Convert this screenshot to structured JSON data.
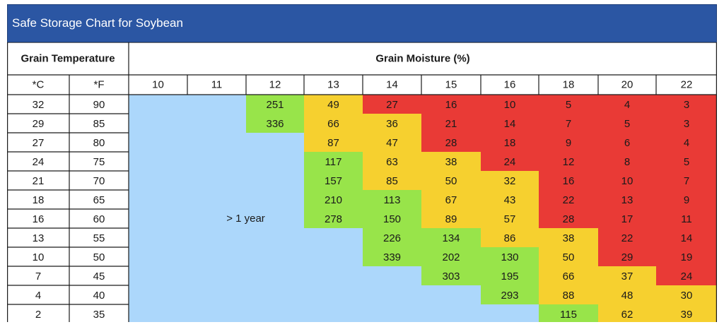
{
  "colors": {
    "title_bg": "#2b56a3",
    "over_year": "#acd7fb",
    "safe": "#98e44a",
    "caution": "#f6d02f",
    "danger": "#e93a36",
    "grid_line": "#1a1a1a"
  },
  "chart_data": {
    "type": "table",
    "title": "Safe Storage Chart for Soybean",
    "temperature_header": "Grain Temperature",
    "moisture_header": "Grain Moisture (%)",
    "celsius_label": "*C",
    "fahrenheit_label": "*F",
    "over_year_label": "> 1 year",
    "moisture_levels": [
      "10",
      "11",
      "12",
      "13",
      "14",
      "15",
      "16",
      "18",
      "20",
      "22"
    ],
    "temps_c": [
      "32",
      "29",
      "27",
      "24",
      "21",
      "18",
      "16",
      "13",
      "10",
      "7",
      "4",
      "2"
    ],
    "temps_f": [
      "90",
      "85",
      "80",
      "75",
      "70",
      "65",
      "60",
      "55",
      "50",
      "45",
      "40",
      "35"
    ],
    "rows": [
      [
        null,
        null,
        {
          "v": "251",
          "c": "safe"
        },
        {
          "v": "49",
          "c": "caution"
        },
        {
          "v": "27",
          "c": "danger"
        },
        {
          "v": "16",
          "c": "danger"
        },
        {
          "v": "10",
          "c": "danger"
        },
        {
          "v": "5",
          "c": "danger"
        },
        {
          "v": "4",
          "c": "danger"
        },
        {
          "v": "3",
          "c": "danger"
        }
      ],
      [
        null,
        null,
        {
          "v": "336",
          "c": "safe"
        },
        {
          "v": "66",
          "c": "caution"
        },
        {
          "v": "36",
          "c": "caution"
        },
        {
          "v": "21",
          "c": "danger"
        },
        {
          "v": "14",
          "c": "danger"
        },
        {
          "v": "7",
          "c": "danger"
        },
        {
          "v": "5",
          "c": "danger"
        },
        {
          "v": "3",
          "c": "danger"
        }
      ],
      [
        null,
        null,
        null,
        {
          "v": "87",
          "c": "caution"
        },
        {
          "v": "47",
          "c": "caution"
        },
        {
          "v": "28",
          "c": "danger"
        },
        {
          "v": "18",
          "c": "danger"
        },
        {
          "v": "9",
          "c": "danger"
        },
        {
          "v": "6",
          "c": "danger"
        },
        {
          "v": "4",
          "c": "danger"
        }
      ],
      [
        null,
        null,
        null,
        {
          "v": "117",
          "c": "safe"
        },
        {
          "v": "63",
          "c": "caution"
        },
        {
          "v": "38",
          "c": "caution"
        },
        {
          "v": "24",
          "c": "danger"
        },
        {
          "v": "12",
          "c": "danger"
        },
        {
          "v": "8",
          "c": "danger"
        },
        {
          "v": "5",
          "c": "danger"
        }
      ],
      [
        null,
        null,
        null,
        {
          "v": "157",
          "c": "safe"
        },
        {
          "v": "85",
          "c": "caution"
        },
        {
          "v": "50",
          "c": "caution"
        },
        {
          "v": "32",
          "c": "caution"
        },
        {
          "v": "16",
          "c": "danger"
        },
        {
          "v": "10",
          "c": "danger"
        },
        {
          "v": "7",
          "c": "danger"
        }
      ],
      [
        null,
        null,
        null,
        {
          "v": "210",
          "c": "safe"
        },
        {
          "v": "113",
          "c": "safe"
        },
        {
          "v": "67",
          "c": "caution"
        },
        {
          "v": "43",
          "c": "caution"
        },
        {
          "v": "22",
          "c": "danger"
        },
        {
          "v": "13",
          "c": "danger"
        },
        {
          "v": "9",
          "c": "danger"
        }
      ],
      [
        null,
        null,
        null,
        {
          "v": "278",
          "c": "safe"
        },
        {
          "v": "150",
          "c": "safe"
        },
        {
          "v": "89",
          "c": "caution"
        },
        {
          "v": "57",
          "c": "caution"
        },
        {
          "v": "28",
          "c": "danger"
        },
        {
          "v": "17",
          "c": "danger"
        },
        {
          "v": "11",
          "c": "danger"
        }
      ],
      [
        null,
        null,
        null,
        null,
        {
          "v": "226",
          "c": "safe"
        },
        {
          "v": "134",
          "c": "safe"
        },
        {
          "v": "86",
          "c": "caution"
        },
        {
          "v": "38",
          "c": "caution"
        },
        {
          "v": "22",
          "c": "danger"
        },
        {
          "v": "14",
          "c": "danger"
        }
      ],
      [
        null,
        null,
        null,
        null,
        {
          "v": "339",
          "c": "safe"
        },
        {
          "v": "202",
          "c": "safe"
        },
        {
          "v": "130",
          "c": "safe"
        },
        {
          "v": "50",
          "c": "caution"
        },
        {
          "v": "29",
          "c": "danger"
        },
        {
          "v": "19",
          "c": "danger"
        }
      ],
      [
        null,
        null,
        null,
        null,
        null,
        {
          "v": "303",
          "c": "safe"
        },
        {
          "v": "195",
          "c": "safe"
        },
        {
          "v": "66",
          "c": "caution"
        },
        {
          "v": "37",
          "c": "caution"
        },
        {
          "v": "24",
          "c": "danger"
        }
      ],
      [
        null,
        null,
        null,
        null,
        null,
        null,
        {
          "v": "293",
          "c": "safe"
        },
        {
          "v": "88",
          "c": "caution"
        },
        {
          "v": "48",
          "c": "caution"
        },
        {
          "v": "30",
          "c": "caution"
        }
      ],
      [
        null,
        null,
        null,
        null,
        null,
        null,
        null,
        {
          "v": "115",
          "c": "safe"
        },
        {
          "v": "62",
          "c": "caution"
        },
        {
          "v": "39",
          "c": "caution"
        }
      ]
    ]
  }
}
